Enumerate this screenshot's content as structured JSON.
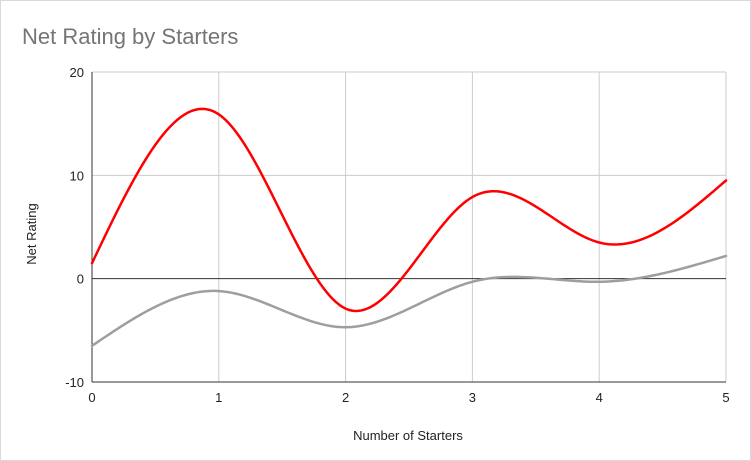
{
  "chart_data": {
    "type": "line",
    "title": "Net Rating by Starters",
    "xlabel": "Number of Starters",
    "ylabel": "Net Rating",
    "xlim": [
      0,
      5
    ],
    "ylim": [
      -10,
      20
    ],
    "x_ticks": [
      "0",
      "1",
      "2",
      "3",
      "4",
      "5"
    ],
    "y_ticks": [
      "-10",
      "0",
      "10",
      "20"
    ],
    "grid": true,
    "legend": "none",
    "smooth": true,
    "series": [
      {
        "color": "#ff0000",
        "x": [
          0,
          1,
          2,
          3,
          4,
          5
        ],
        "values": [
          1.5,
          15.9,
          -2.9,
          7.9,
          3.5,
          9.5
        ]
      },
      {
        "color": "#9e9e9e",
        "x": [
          0,
          1,
          2,
          3,
          4,
          5
        ],
        "values": [
          -6.5,
          -1.2,
          -4.7,
          -0.3,
          -0.3,
          2.2
        ]
      }
    ]
  }
}
